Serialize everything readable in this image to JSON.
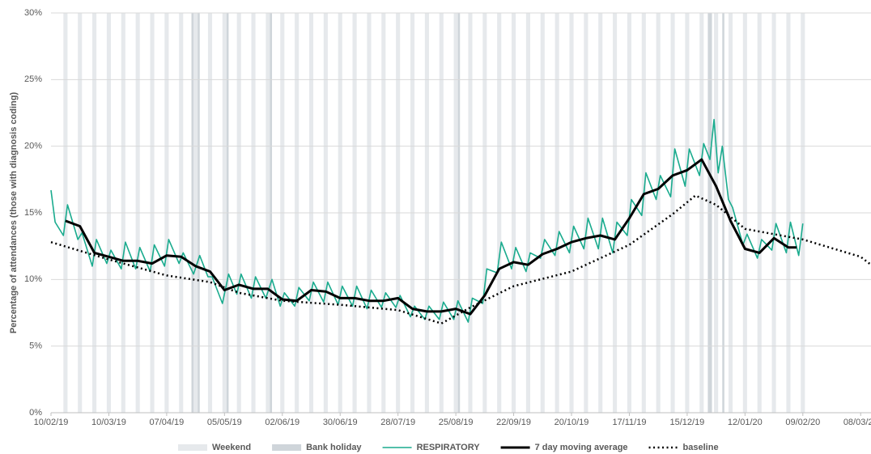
{
  "chart_data": {
    "type": "line",
    "y_label": "Percentage of attendances (those with diagnosis coding)",
    "xlim": [
      "10/02/19",
      "13/03/20"
    ],
    "xticks": [
      "10/02/19",
      "10/03/19",
      "07/04/19",
      "05/05/19",
      "02/06/19",
      "30/06/19",
      "28/07/19",
      "25/08/19",
      "22/09/19",
      "20/10/19",
      "17/11/19",
      "15/12/19",
      "12/01/20",
      "09/02/20",
      "08/03/20"
    ],
    "ylim": [
      0,
      30
    ],
    "yticks": [
      {
        "value": 0,
        "label": "0%"
      },
      {
        "value": 5,
        "label": "5%"
      },
      {
        "value": 10,
        "label": "10%"
      },
      {
        "value": 15,
        "label": "15%"
      },
      {
        "value": 20,
        "label": "20%"
      },
      {
        "value": 25,
        "label": "25%"
      },
      {
        "value": 30,
        "label": "30%"
      }
    ],
    "grid": true,
    "legend": "bottom",
    "weekend": {
      "name": "Weekend",
      "color": "#e6e9ec"
    },
    "bank_holidays": {
      "name": "Bank holiday",
      "color": "#cfd5da",
      "dates": [
        "19/04/19",
        "22/04/19",
        "06/05/19",
        "27/05/19",
        "26/08/19",
        "25/12/19",
        "26/12/19",
        "01/01/20"
      ]
    },
    "series": [
      {
        "name": "RESPIRATORY",
        "color": "#1aab8e",
        "width": 1.6,
        "style": "solid",
        "x": [
          "10/02/19",
          "12/02/19",
          "16/02/19",
          "18/02/19",
          "23/02/19",
          "25/02/19",
          "02/03/19",
          "04/03/19",
          "09/03/19",
          "11/03/19",
          "16/03/19",
          "18/03/19",
          "23/03/19",
          "25/03/19",
          "30/03/19",
          "01/04/19",
          "06/04/19",
          "08/04/19",
          "13/04/19",
          "15/04/19",
          "20/04/19",
          "23/04/19",
          "27/04/19",
          "29/04/19",
          "04/05/19",
          "07/05/19",
          "11/05/19",
          "13/05/19",
          "18/05/19",
          "20/05/19",
          "25/05/19",
          "28/05/19",
          "01/06/19",
          "03/06/19",
          "08/06/19",
          "10/06/19",
          "15/06/19",
          "17/06/19",
          "22/06/19",
          "24/06/19",
          "29/06/19",
          "01/07/19",
          "06/07/19",
          "08/07/19",
          "13/07/19",
          "15/07/19",
          "20/07/19",
          "22/07/19",
          "27/07/19",
          "29/07/19",
          "03/08/19",
          "05/08/19",
          "10/08/19",
          "12/08/19",
          "17/08/19",
          "19/08/19",
          "24/08/19",
          "26/08/19",
          "31/08/19",
          "02/09/19",
          "07/09/19",
          "09/09/19",
          "14/09/19",
          "16/09/19",
          "21/09/19",
          "23/09/19",
          "28/09/19",
          "30/09/19",
          "05/10/19",
          "07/10/19",
          "12/10/19",
          "14/10/19",
          "19/10/19",
          "21/10/19",
          "26/10/19",
          "28/10/19",
          "02/11/19",
          "04/11/19",
          "09/11/19",
          "11/11/19",
          "16/11/19",
          "18/11/19",
          "23/11/19",
          "25/11/19",
          "30/11/19",
          "02/12/19",
          "07/12/19",
          "09/12/19",
          "14/12/19",
          "16/12/19",
          "21/12/19",
          "23/12/19",
          "26/12/19",
          "28/12/19",
          "30/12/19",
          "01/01/20",
          "04/01/20",
          "06/01/20",
          "11/01/20",
          "13/01/20",
          "18/01/20",
          "20/01/20",
          "25/01/20",
          "27/01/20",
          "01/02/20",
          "03/02/20",
          "07/02/20",
          "09/02/20"
        ],
        "values": [
          16.7,
          14.3,
          13.3,
          15.6,
          13.0,
          13.5,
          11.0,
          13.0,
          11.2,
          12.2,
          10.8,
          12.8,
          10.8,
          12.4,
          10.6,
          12.6,
          11.0,
          13.0,
          11.2,
          12.0,
          10.4,
          11.8,
          10.2,
          10.2,
          8.2,
          10.4,
          8.9,
          10.4,
          8.6,
          10.2,
          8.6,
          10.0,
          8.0,
          9.0,
          8.0,
          9.4,
          8.4,
          9.8,
          8.3,
          9.8,
          8.1,
          9.5,
          8.0,
          9.5,
          7.8,
          9.2,
          7.9,
          9.0,
          7.9,
          8.8,
          7.2,
          8.0,
          7.0,
          8.0,
          7.0,
          8.3,
          7.0,
          8.4,
          6.8,
          8.6,
          8.2,
          10.8,
          10.5,
          12.8,
          10.8,
          12.4,
          10.6,
          12.0,
          11.6,
          13.0,
          11.8,
          13.6,
          12.0,
          14.0,
          12.3,
          14.6,
          12.3,
          14.6,
          12.0,
          14.3,
          13.3,
          16.0,
          14.8,
          18.0,
          16.0,
          17.8,
          16.2,
          19.8,
          17.0,
          19.8,
          17.8,
          20.2,
          19.0,
          22.0,
          18.0,
          20.0,
          16.0,
          15.4,
          12.6,
          13.4,
          11.6,
          13.0,
          12.2,
          14.2,
          12.0,
          14.3,
          11.8,
          14.2
        ]
      },
      {
        "name": "7 day moving average",
        "color": "#000000",
        "width": 3,
        "style": "solid",
        "x": [
          "17/02/19",
          "24/02/19",
          "03/03/19",
          "10/03/19",
          "17/03/19",
          "24/03/19",
          "31/03/19",
          "07/04/19",
          "14/04/19",
          "21/04/19",
          "28/04/19",
          "05/05/19",
          "12/05/19",
          "19/05/19",
          "26/05/19",
          "02/06/19",
          "09/06/19",
          "16/06/19",
          "23/06/19",
          "30/06/19",
          "07/07/19",
          "14/07/19",
          "21/07/19",
          "28/07/19",
          "04/08/19",
          "11/08/19",
          "18/08/19",
          "25/08/19",
          "01/09/19",
          "08/09/19",
          "15/09/19",
          "22/09/19",
          "29/09/19",
          "06/10/19",
          "13/10/19",
          "20/10/19",
          "27/10/19",
          "03/11/19",
          "10/11/19",
          "17/11/19",
          "24/11/19",
          "01/12/19",
          "08/12/19",
          "15/12/19",
          "22/12/19",
          "29/12/19",
          "05/01/20",
          "12/01/20",
          "19/01/20",
          "26/01/20",
          "02/02/20",
          "06/02/20"
        ],
        "values": [
          14.4,
          14.0,
          12.0,
          11.7,
          11.4,
          11.4,
          11.2,
          11.8,
          11.7,
          11.0,
          10.6,
          9.2,
          9.6,
          9.3,
          9.3,
          8.5,
          8.4,
          9.2,
          9.1,
          8.6,
          8.6,
          8.4,
          8.4,
          8.6,
          7.8,
          7.6,
          7.6,
          7.8,
          7.4,
          8.8,
          10.8,
          11.3,
          11.1,
          11.9,
          12.3,
          12.8,
          13.1,
          13.3,
          13.0,
          14.6,
          16.4,
          16.8,
          17.8,
          18.2,
          19.0,
          17.0,
          14.4,
          12.3,
          12.0,
          13.1,
          12.4,
          12.4
        ]
      },
      {
        "name": "baseline",
        "color": "#000000",
        "width": 2.5,
        "style": "dotted",
        "x": [
          "10/02/19",
          "10/03/19",
          "07/04/19",
          "28/04/19",
          "12/05/19",
          "02/06/19",
          "30/06/19",
          "28/07/19",
          "18/08/19",
          "01/09/19",
          "22/09/19",
          "20/10/19",
          "17/11/19",
          "08/12/19",
          "19/12/19",
          "29/12/19",
          "12/01/20",
          "09/02/20",
          "08/03/20",
          "13/03/20"
        ],
        "values": [
          12.8,
          11.5,
          10.3,
          9.8,
          9.0,
          8.4,
          8.1,
          7.7,
          6.7,
          7.9,
          9.5,
          10.6,
          12.6,
          14.9,
          16.3,
          15.6,
          13.8,
          13.0,
          11.7,
          11.1
        ]
      }
    ]
  }
}
